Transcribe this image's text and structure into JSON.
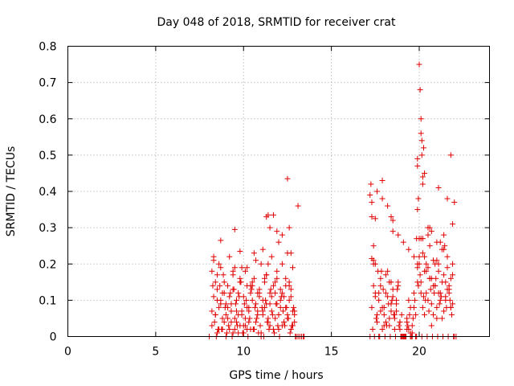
{
  "chart_data": {
    "type": "scatter",
    "title": "Day 048 of 2018, SRMTID for receiver crat",
    "xlabel": "GPS time / hours",
    "ylabel": "SRMTID / TECUs",
    "xlim": [
      0,
      24
    ],
    "ylim": [
      0,
      0.8
    ],
    "xticks": [
      0,
      5,
      10,
      15,
      20
    ],
    "yticks": [
      0,
      0.1,
      0.2,
      0.3,
      0.4,
      0.5,
      0.6,
      0.7,
      0.8
    ],
    "ytick_labels": [
      "0",
      "0.1",
      "0.2",
      "0.3",
      "0.4",
      "0.5",
      "0.6",
      "0.7",
      "0.8"
    ],
    "grid": true,
    "marker": "+",
    "color": "#e00000",
    "series": [
      {
        "name": "SRMTID",
        "x": [
          8.05,
          8.2,
          8.3,
          8.4,
          8.5,
          8.6,
          8.7,
          8.8,
          8.9,
          9.0,
          9.1,
          9.2,
          9.3,
          9.4,
          9.5,
          9.6,
          9.7,
          9.8,
          9.9,
          10.0,
          10.1,
          10.2,
          10.3,
          10.4,
          10.5,
          10.6,
          10.7,
          10.8,
          10.9,
          11.0,
          11.1,
          11.2,
          11.3,
          11.4,
          11.5,
          11.6,
          11.7,
          11.8,
          11.9,
          12.0,
          12.1,
          12.2,
          12.3,
          12.4,
          12.5,
          12.6,
          12.7,
          12.8,
          12.9,
          13.0,
          13.1,
          8.2,
          8.3,
          8.4,
          8.5,
          8.6,
          8.7,
          8.8,
          8.9,
          9.0,
          9.1,
          9.2,
          9.3,
          9.4,
          9.5,
          9.6,
          9.7,
          9.8,
          9.9,
          10.0,
          10.1,
          10.2,
          10.3,
          10.4,
          10.5,
          10.6,
          10.7,
          10.8,
          10.9,
          11.0,
          11.1,
          11.2,
          11.3,
          11.4,
          11.5,
          11.6,
          11.7,
          11.8,
          11.9,
          12.0,
          12.1,
          12.2,
          12.3,
          12.4,
          12.5,
          12.6,
          12.7,
          12.8,
          12.9,
          8.2,
          8.35,
          8.5,
          8.65,
          8.8,
          8.95,
          9.1,
          9.25,
          9.4,
          9.55,
          9.7,
          9.85,
          10.0,
          10.15,
          10.3,
          10.45,
          10.6,
          10.75,
          10.9,
          11.05,
          11.2,
          11.35,
          11.5,
          11.65,
          11.8,
          11.95,
          12.1,
          12.25,
          12.4,
          12.55,
          12.7,
          12.85,
          8.25,
          8.4,
          8.55,
          8.7,
          8.85,
          9.0,
          9.15,
          9.3,
          9.45,
          9.6,
          9.75,
          9.9,
          10.05,
          10.2,
          10.35,
          10.5,
          10.65,
          10.8,
          10.95,
          11.1,
          11.25,
          11.4,
          11.55,
          11.7,
          11.85,
          12.0,
          12.15,
          12.3,
          12.45,
          12.6,
          12.75,
          12.9,
          8.3,
          8.6,
          8.9,
          9.2,
          9.5,
          9.8,
          10.1,
          10.4,
          10.7,
          11.0,
          11.3,
          11.6,
          11.9,
          12.2,
          12.5,
          12.8,
          8.45,
          8.75,
          9.05,
          9.35,
          9.65,
          9.95,
          10.25,
          10.55,
          10.85,
          11.15,
          11.45,
          11.75,
          12.05,
          12.35,
          12.65,
          12.95,
          8.7,
          9.5,
          9.8,
          10.6,
          11.3,
          11.4,
          11.5,
          11.7,
          11.9,
          12.0,
          12.2,
          12.6,
          12.7,
          13.1,
          12.5,
          8.5,
          9.4,
          10.2,
          11.1,
          13.2,
          13.3,
          13.4,
          13.45,
          17.2,
          17.3,
          17.4,
          17.5,
          17.6,
          17.7,
          17.8,
          17.9,
          18.0,
          18.1,
          18.2,
          18.3,
          18.4,
          18.5,
          18.6,
          18.7,
          18.8,
          18.9,
          19.0,
          19.1,
          19.2,
          19.3,
          19.4,
          19.5,
          19.6,
          19.7,
          19.8,
          19.9,
          20.0,
          20.1,
          20.2,
          20.3,
          20.4,
          20.5,
          20.6,
          20.7,
          20.8,
          20.9,
          21.0,
          21.1,
          21.2,
          21.3,
          21.4,
          21.5,
          21.6,
          21.7,
          21.8,
          21.9,
          22.0,
          22.1,
          17.3,
          17.4,
          17.5,
          17.6,
          17.7,
          17.8,
          17.9,
          18.0,
          18.1,
          18.2,
          18.3,
          18.4,
          18.5,
          18.6,
          18.7,
          18.8,
          18.9,
          19.0,
          19.1,
          19.2,
          19.3,
          19.4,
          19.5,
          19.6,
          19.7,
          19.8,
          19.9,
          20.0,
          20.1,
          20.2,
          20.3,
          20.4,
          20.5,
          20.6,
          20.7,
          20.8,
          20.9,
          21.0,
          21.1,
          21.2,
          21.3,
          21.4,
          21.5,
          21.6,
          21.7,
          21.8,
          21.9,
          17.35,
          17.5,
          17.65,
          17.8,
          17.95,
          18.1,
          18.25,
          18.4,
          18.55,
          18.7,
          18.85,
          19.0,
          19.15,
          19.3,
          19.45,
          19.6,
          19.75,
          19.9,
          20.05,
          20.2,
          20.35,
          20.5,
          20.65,
          20.8,
          20.95,
          21.1,
          21.25,
          21.4,
          21.55,
          21.7,
          21.85,
          17.4,
          17.55,
          17.7,
          17.85,
          18.0,
          18.15,
          18.3,
          18.45,
          18.6,
          18.75,
          18.9,
          19.05,
          19.2,
          19.35,
          19.5,
          19.65,
          19.8,
          19.95,
          20.1,
          20.25,
          20.4,
          20.55,
          20.7,
          20.85,
          21.0,
          21.15,
          21.3,
          21.45,
          21.6,
          21.75,
          21.9,
          17.45,
          17.75,
          18.05,
          18.35,
          18.65,
          18.95,
          19.25,
          19.55,
          19.85,
          20.15,
          20.45,
          20.75,
          21.05,
          21.35,
          21.65,
          21.95,
          17.6,
          17.9,
          18.2,
          18.5,
          18.8,
          19.1,
          19.4,
          19.7,
          20.0,
          20.3,
          20.6,
          20.9,
          21.2,
          21.5,
          21.8,
          17.2,
          17.25,
          17.3,
          17.5,
          17.3,
          17.4,
          17.9,
          18.4,
          18.5,
          19.85,
          19.9,
          19.95,
          19.9,
          20.0,
          20.05,
          20.1,
          20.1,
          20.15,
          20.15,
          20.2,
          20.2,
          20.25,
          19.9,
          20.3,
          21.6,
          21.8,
          21.9,
          22.0,
          20.5,
          20.6,
          20.7,
          21.0,
          21.1,
          21.4
        ],
        "y": [
          0.0,
          0.18,
          0.22,
          0.06,
          0.13,
          0.02,
          0.09,
          0.05,
          0.15,
          0.0,
          0.08,
          0.11,
          0.04,
          0.17,
          0.02,
          0.07,
          0.12,
          0.03,
          0.19,
          0.01,
          0.05,
          0.14,
          0.08,
          0.02,
          0.1,
          0.16,
          0.04,
          0.07,
          0.12,
          0.0,
          0.06,
          0.15,
          0.09,
          0.2,
          0.03,
          0.11,
          0.14,
          0.05,
          0.18,
          0.02,
          0.08,
          0.12,
          0.04,
          0.16,
          0.06,
          0.1,
          0.13,
          0.03,
          0.07,
          0.0,
          0.0,
          0.03,
          0.11,
          0.15,
          0.01,
          0.08,
          0.19,
          0.12,
          0.04,
          0.06,
          0.14,
          0.02,
          0.09,
          0.13,
          0.05,
          0.1,
          0.01,
          0.16,
          0.07,
          0.11,
          0.03,
          0.08,
          0.04,
          0.12,
          0.15,
          0.02,
          0.09,
          0.06,
          0.13,
          0.01,
          0.1,
          0.08,
          0.17,
          0.04,
          0.12,
          0.07,
          0.02,
          0.15,
          0.09,
          0.06,
          0.13,
          0.03,
          0.11,
          0.08,
          0.05,
          0.14,
          0.02,
          0.07,
          0.04,
          0.07,
          0.04,
          0.1,
          0.14,
          0.02,
          0.08,
          0.05,
          0.12,
          0.01,
          0.09,
          0.06,
          0.15,
          0.03,
          0.1,
          0.07,
          0.13,
          0.02,
          0.05,
          0.11,
          0.08,
          0.16,
          0.04,
          0.09,
          0.06,
          0.12,
          0.03,
          0.1,
          0.07,
          0.14,
          0.05,
          0.11,
          0.08,
          0.14,
          0.06,
          0.02,
          0.1,
          0.17,
          0.09,
          0.03,
          0.07,
          0.13,
          0.04,
          0.11,
          0.06,
          0.09,
          0.02,
          0.05,
          0.14,
          0.08,
          0.12,
          0.03,
          0.07,
          0.1,
          0.05,
          0.13,
          0.02,
          0.09,
          0.06,
          0.11,
          0.04,
          0.08,
          0.15,
          0.03,
          0.06,
          0.21,
          0.2,
          0.12,
          0.22,
          0.19,
          0.15,
          0.18,
          0.14,
          0.21,
          0.2,
          0.17,
          0.22,
          0.16,
          0.2,
          0.23,
          0.19,
          0.0,
          0.02,
          0.01,
          0.0,
          0.03,
          0.01,
          0.0,
          0.02,
          0.01,
          0.0,
          0.02,
          0.01,
          0.0,
          0.03,
          0.01,
          0.0,
          0.265,
          0.295,
          0.235,
          0.23,
          0.33,
          0.335,
          0.3,
          0.335,
          0.29,
          0.26,
          0.28,
          0.3,
          0.23,
          0.36,
          0.435,
          0.17,
          0.18,
          0.19,
          0.24,
          0.0,
          0.0,
          0.0,
          0.0,
          0.0,
          0.33,
          0.25,
          0.12,
          0.06,
          0.0,
          0.14,
          0.08,
          0.03,
          0.17,
          0.11,
          0.05,
          0.09,
          0.13,
          0.02,
          0.07,
          0.15,
          0.04,
          0.0,
          0.0,
          0.0,
          0.05,
          0.1,
          0.0,
          0.03,
          0.08,
          0.0,
          0.15,
          0.22,
          0.12,
          0.27,
          0.06,
          0.18,
          0.1,
          0.25,
          0.03,
          0.14,
          0.2,
          0.08,
          0.12,
          0.26,
          0.05,
          0.17,
          0.11,
          0.22,
          0.13,
          0.08,
          0.2,
          0.0,
          0.0,
          0.08,
          0.14,
          0.2,
          0.04,
          0.1,
          0.16,
          0.02,
          0.06,
          0.12,
          0.18,
          0.03,
          0.07,
          0.11,
          0.05,
          0.09,
          0.14,
          0.02,
          0.06,
          0.0,
          0.0,
          0.04,
          0.02,
          0.08,
          0.0,
          0.12,
          0.06,
          0.19,
          0.27,
          0.15,
          0.08,
          0.22,
          0.12,
          0.3,
          0.16,
          0.09,
          0.21,
          0.14,
          0.05,
          0.18,
          0.1,
          0.24,
          0.07,
          0.15,
          0.19,
          0.12,
          0.16,
          0.09,
          0.02,
          0.11,
          0.18,
          0.07,
          0.13,
          0.04,
          0.09,
          0.15,
          0.06,
          0.1,
          0.03,
          0.0,
          0.0,
          0.02,
          0.06,
          0.01,
          0.1,
          0.2,
          0.17,
          0.23,
          0.1,
          0.19,
          0.13,
          0.06,
          0.16,
          0.2,
          0.11,
          0.24,
          0.08,
          0.14,
          0.06,
          0.21,
          0.05,
          0.12,
          0.18,
          0.08,
          0.03,
          0.15,
          0.1,
          0.06,
          0.13,
          0.04,
          0.0,
          0.0,
          0.03,
          0.01,
          0.05,
          0.0,
          0.14,
          0.27,
          0.11,
          0.2,
          0.07,
          0.16,
          0.12,
          0.21,
          0.09,
          0.15,
          0.25,
          0.13,
          0.1,
          0.17,
          0.0,
          0.0,
          0.0,
          0.0,
          0.0,
          0.0,
          0.0,
          0.0,
          0.0,
          0.0,
          0.0,
          0.0,
          0.0,
          0.0,
          0.0,
          0.0,
          0.4,
          0.38,
          0.36,
          0.32,
          0.28,
          0.26,
          0.24,
          0.22,
          0.2,
          0.18,
          0.16,
          0.14,
          0.12,
          0.1,
          0.08,
          0.39,
          0.42,
          0.37,
          0.325,
          0.215,
          0.2,
          0.43,
          0.33,
          0.29,
          0.27,
          0.35,
          0.38,
          0.47,
          0.75,
          0.68,
          0.6,
          0.56,
          0.54,
          0.5,
          0.44,
          0.42,
          0.52,
          0.49,
          0.45,
          0.38,
          0.5,
          0.31,
          0.37,
          0.28,
          0.3,
          0.29,
          0.26,
          0.41,
          0.28
        ]
      }
    ]
  }
}
